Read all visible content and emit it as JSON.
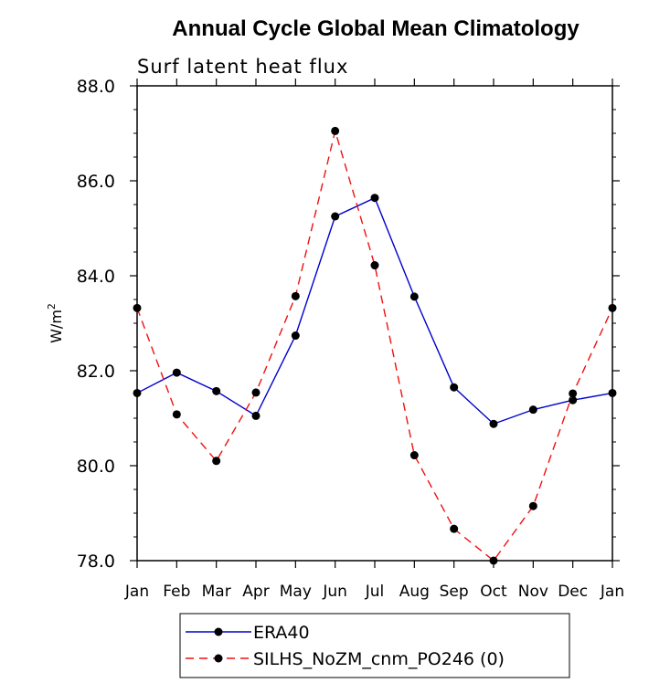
{
  "chart_data": {
    "type": "line",
    "title": "Annual Cycle Global Mean Climatology",
    "subtitle": "Surf latent heat flux",
    "ylabel": "W/m",
    "ylabel_superscript": "2",
    "xlabel": "",
    "ylim": [
      78.0,
      88.0
    ],
    "yticks": [
      "78.0",
      "80.0",
      "82.0",
      "84.0",
      "86.0",
      "88.0"
    ],
    "categories": [
      "Jan",
      "Feb",
      "Mar",
      "Apr",
      "May",
      "Jun",
      "Jul",
      "Aug",
      "Sep",
      "Oct",
      "Nov",
      "Dec",
      "Jan"
    ],
    "series": [
      {
        "name": "ERA40",
        "color": "#0000cc",
        "dash": "solid",
        "values": [
          81.53,
          81.96,
          81.57,
          81.05,
          82.74,
          85.25,
          85.64,
          83.56,
          81.65,
          80.88,
          81.18,
          81.38,
          81.53
        ]
      },
      {
        "name": "SILHS_NoZM_cnm_PO246 (0)",
        "color": "#ee1111",
        "dash": "dashed",
        "values": [
          83.32,
          81.08,
          80.1,
          81.54,
          83.57,
          87.05,
          84.22,
          80.22,
          78.67,
          78.0,
          79.15,
          81.52,
          83.32
        ]
      }
    ]
  }
}
